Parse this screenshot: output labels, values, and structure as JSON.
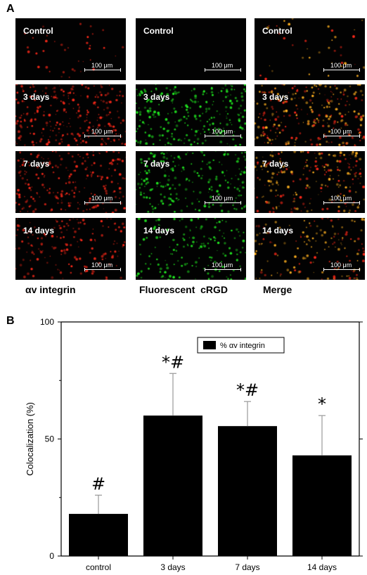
{
  "panel_a": {
    "letter": "A",
    "columns": [
      "αv integrin",
      "Fluorescent  cRGD",
      "Merge"
    ],
    "rows": [
      "Control",
      "3 days",
      "7 days",
      "14 days"
    ],
    "scale_bar": "100 μm",
    "channel_colors": {
      "integrin": "#ff2a1a",
      "rgd": "#22ee22",
      "merge": "#ffb020"
    }
  },
  "panel_b": {
    "letter": "B"
  },
  "chart_data": {
    "type": "bar",
    "categories": [
      "control",
      "3 days",
      "7 days",
      "14 days"
    ],
    "series": [
      {
        "name": "% αv integrin",
        "values": [
          18,
          60,
          55.5,
          43
        ]
      }
    ],
    "errors": [
      8,
      18,
      10.5,
      17
    ],
    "annotations": [
      "#",
      "*#",
      "*#",
      "*"
    ],
    "ylabel": "Colocalization (%)",
    "ylim": [
      0,
      100
    ],
    "yticks": [
      0,
      50,
      100
    ],
    "bar_color": "#000000",
    "legend_position": "top-right"
  }
}
